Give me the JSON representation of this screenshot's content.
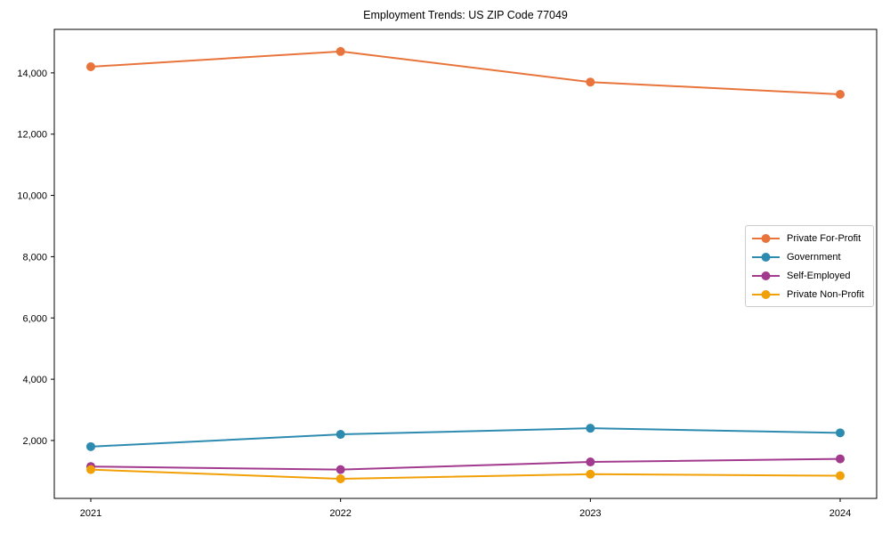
{
  "chart_data": {
    "type": "line",
    "title": "Employment Trends: US ZIP Code 77049",
    "x_labels": [
      "2021",
      "2022",
      "2023",
      "2024"
    ],
    "series": [
      {
        "name": "Private For-Profit",
        "color": "#E8743B",
        "values": [
          14200,
          14700,
          13700,
          13300
        ]
      },
      {
        "name": "Government",
        "color": "#2E8BB0",
        "values": [
          1800,
          2200,
          2400,
          2250
        ]
      },
      {
        "name": "Self-Employed",
        "color": "#A23A8D",
        "values": [
          1150,
          1050,
          1300,
          1400
        ]
      },
      {
        "name": "Private Non-Profit",
        "color": "#F2A007",
        "values": [
          1050,
          750,
          900,
          850
        ]
      }
    ],
    "yticks": [
      2000,
      4000,
      6000,
      8000,
      10000,
      12000,
      14000
    ],
    "ytick_labels": [
      "2,000",
      "4,000",
      "6,000",
      "8,000",
      "10,000",
      "12,000",
      "14,000"
    ],
    "ylim": [
      110,
      15420
    ],
    "grid": false,
    "legend_position": "center-right",
    "marker": "circle",
    "line_width": 2,
    "marker_radius": 5,
    "axis_color": "#000000",
    "background": "#FFFFFF"
  }
}
